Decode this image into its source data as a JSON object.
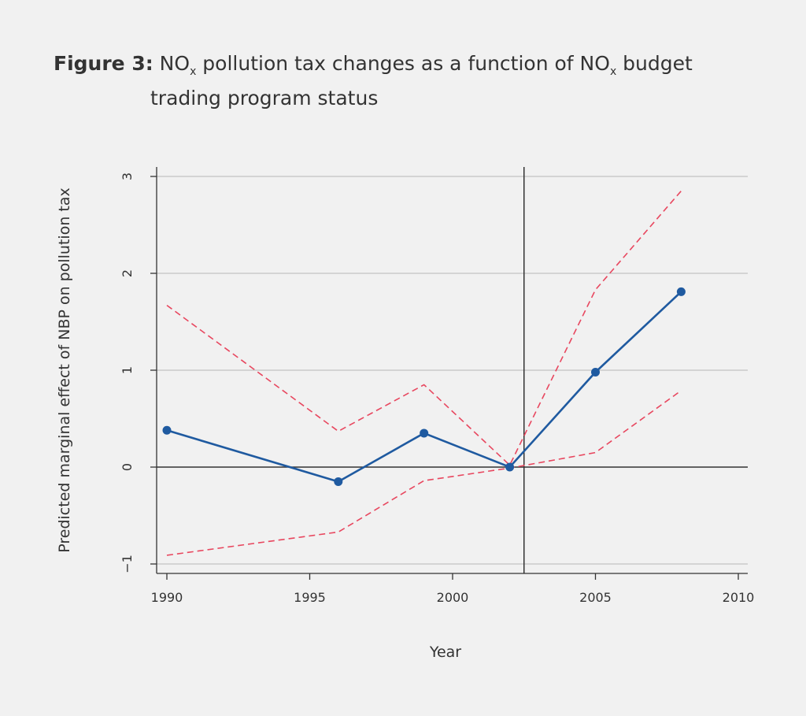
{
  "title": {
    "prefix": "Figure 3:",
    "part1": " NO",
    "sub1": "x",
    "part2": " pollution tax changes as a function of NO",
    "sub2": "x",
    "part3": " budget",
    "line2": "trading program status"
  },
  "chart_data": {
    "type": "line",
    "xlabel": "Year",
    "ylabel": "Predicted marginal effect of NBP on pollution tax",
    "xlim": [
      1990,
      2010
    ],
    "ylim": [
      -1,
      3
    ],
    "xticks": [
      "1990",
      "1995",
      "2000",
      "2005",
      "2010"
    ],
    "yticks": [
      "-1",
      "0",
      "1",
      "2",
      "3"
    ],
    "grid": true,
    "reference_lines": {
      "horizontal_y": 0,
      "vertical_x": 2002.5
    },
    "x": [
      1990,
      1996,
      1999,
      2002,
      2005,
      2008
    ],
    "series": [
      {
        "role": "estimate",
        "values": [
          0.38,
          -0.15,
          0.35,
          0.0,
          0.98,
          1.81
        ],
        "color": "#1f5aa0",
        "style": "solid-markers"
      },
      {
        "role": "upper",
        "values": [
          1.67,
          0.37,
          0.85,
          0.02,
          1.83,
          2.85
        ],
        "color": "#e8475f",
        "style": "dashed"
      },
      {
        "role": "lower",
        "values": [
          -0.91,
          -0.67,
          -0.14,
          -0.01,
          0.15,
          0.79
        ],
        "color": "#e8475f",
        "style": "dashed"
      }
    ]
  }
}
